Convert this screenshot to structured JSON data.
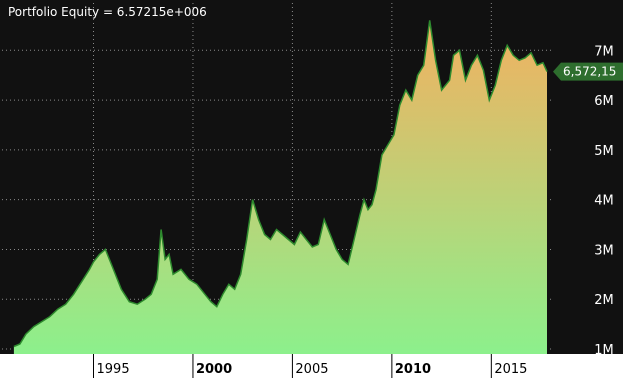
{
  "chart_data": {
    "type": "area",
    "title": "Portfolio Equity = 6.57215e+006",
    "series": [
      {
        "name": "Portfolio Equity"
      }
    ],
    "x": [
      1991.0,
      1991.3,
      1991.6,
      1992.0,
      1992.4,
      1992.8,
      1993.2,
      1993.6,
      1994.0,
      1994.4,
      1994.8,
      1995.0,
      1995.3,
      1995.6,
      1996.0,
      1996.4,
      1996.8,
      1997.2,
      1997.6,
      1997.9,
      1998.2,
      1998.4,
      1998.6,
      1998.8,
      1999.0,
      1999.4,
      1999.8,
      2000.2,
      2000.6,
      2000.9,
      2001.2,
      2001.5,
      2001.8,
      2002.1,
      2002.4,
      2002.7,
      2003.0,
      2003.3,
      2003.6,
      2003.9,
      2004.2,
      2004.5,
      2004.8,
      2005.1,
      2005.4,
      2005.7,
      2006.0,
      2006.3,
      2006.6,
      2006.9,
      2007.2,
      2007.5,
      2007.8,
      2008.1,
      2008.4,
      2008.6,
      2008.8,
      2009.0,
      2009.2,
      2009.5,
      2009.8,
      2010.1,
      2010.4,
      2010.7,
      2011.0,
      2011.3,
      2011.6,
      2011.9,
      2012.2,
      2012.5,
      2012.7,
      2012.9,
      2013.1,
      2013.4,
      2013.7,
      2014.0,
      2014.3,
      2014.6,
      2014.9,
      2015.2,
      2015.5,
      2015.8,
      2016.1,
      2016.4,
      2016.7,
      2017.0,
      2017.3,
      2017.6,
      2017.8
    ],
    "y": [
      1.05,
      1.1,
      1.3,
      1.45,
      1.55,
      1.65,
      1.8,
      1.9,
      2.1,
      2.35,
      2.6,
      2.75,
      2.9,
      3.0,
      2.6,
      2.2,
      1.95,
      1.9,
      2.0,
      2.1,
      2.4,
      3.4,
      2.8,
      2.9,
      2.5,
      2.6,
      2.4,
      2.3,
      2.1,
      1.95,
      1.85,
      2.1,
      2.3,
      2.2,
      2.5,
      3.2,
      4.0,
      3.6,
      3.3,
      3.2,
      3.4,
      3.3,
      3.2,
      3.1,
      3.35,
      3.2,
      3.05,
      3.1,
      3.6,
      3.3,
      3.0,
      2.8,
      2.7,
      3.2,
      3.7,
      4.0,
      3.8,
      3.9,
      4.2,
      4.9,
      5.1,
      5.3,
      5.9,
      6.2,
      6.0,
      6.5,
      6.7,
      7.6,
      6.8,
      6.2,
      6.3,
      6.4,
      6.9,
      7.0,
      6.4,
      6.7,
      6.9,
      6.6,
      6.0,
      6.3,
      6.8,
      7.1,
      6.9,
      6.8,
      6.85,
      6.95,
      6.7,
      6.75,
      6.57215
    ],
    "xlim": [
      1990.4,
      2018.0
    ],
    "ylim": [
      0.9,
      7.95
    ],
    "yticks": [
      1,
      2,
      3,
      4,
      5,
      6,
      7
    ],
    "ytick_labels": [
      "1M",
      "2M",
      "3M",
      "4M",
      "5M",
      "6M",
      "7M"
    ],
    "xticks": [
      1995,
      2000,
      2005,
      2010,
      2015
    ],
    "xtick_labels": [
      "1995",
      "2000",
      "2005",
      "2010",
      "2015"
    ],
    "xtick_bold": [
      false,
      true,
      false,
      true,
      false
    ],
    "last_value_label": "6,572,15",
    "grid": true,
    "colors": {
      "background": "#111111",
      "fill_top": "#f3b060",
      "fill_bottom": "#8cf08c",
      "outline": "#2e8b2e",
      "grid": "#8a8a8a",
      "marker": "#2e6e2e"
    }
  }
}
